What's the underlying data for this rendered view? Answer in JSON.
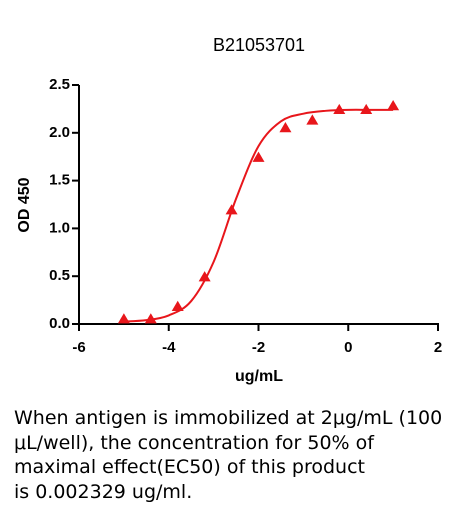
{
  "chart_data": {
    "type": "scatter",
    "title": "B21053701",
    "x_label": "ug/mL",
    "y_label": "OD 450",
    "xlim": [
      -6,
      2
    ],
    "xticks": [
      -6,
      -4,
      -2,
      0,
      2
    ],
    "ylim": [
      0,
      2.5
    ],
    "yticks": [
      {
        "value": 0,
        "label": "0.0"
      },
      0.5,
      {
        "value": 1,
        "label": "1.0"
      },
      1.5,
      {
        "value": 2,
        "label": "2.0"
      },
      2.5
    ],
    "series": [
      {
        "type": "scatter",
        "color": "#e8161b",
        "x": [
          -5,
          -4.4,
          -3.8,
          -3.2,
          -2.6,
          -2.0,
          -1.4,
          -0.8,
          -0.2,
          0.4,
          1.0
        ],
        "values": [
          0.05,
          0.05,
          0.18,
          0.49,
          1.19,
          1.74,
          2.05,
          2.13,
          2.24,
          2.24,
          2.28
        ]
      },
      {
        "type": "line",
        "color": "#e8161b",
        "x": [
          -5,
          -4.5,
          -4,
          -3.5,
          -3,
          -2.5,
          -2,
          -1.5,
          -1,
          -0.5,
          0,
          0.5,
          1
        ],
        "values": [
          0.025,
          0.04,
          0.09,
          0.24,
          0.65,
          1.31,
          1.86,
          2.12,
          2.2,
          2.23,
          2.24,
          2.24,
          2.24
        ]
      }
    ]
  },
  "caption": {
    "lines": [
      "When antigen is immobilized at 2μg/mL (100",
      "μL/well), the concentration for 50% of",
      "maximal effect(EC50) of this product",
      "is 0.002329 ug/ml."
    ]
  }
}
